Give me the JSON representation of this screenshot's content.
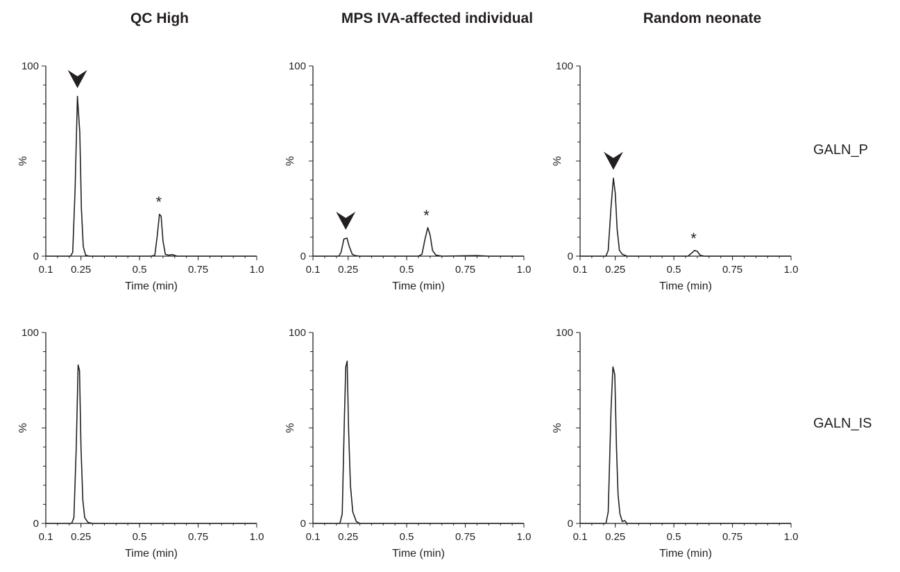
{
  "column_titles": [
    "QC High",
    "MPS IVA-affected individual",
    "Random neonate"
  ],
  "row_labels": [
    "GALN_P",
    "GALN_IS"
  ],
  "colors": {
    "trace": "#231f20",
    "arrow": "#231f20"
  },
  "chart_data": [
    {
      "type": "line",
      "column": "QC High",
      "row": "GALN_P",
      "xlabel": "Time (min)",
      "ylabel": "%",
      "xlim": [
        0.1,
        1.0
      ],
      "ylim": [
        0,
        100
      ],
      "x_ticks": [
        "0.1",
        "0.25",
        "0.5",
        "0.75",
        "1.0"
      ],
      "y_ticks": [
        "0",
        "100"
      ],
      "series": [
        {
          "values": [
            [
              0.1,
              0
            ],
            [
              0.205,
              0
            ],
            [
              0.215,
              2
            ],
            [
              0.225,
              35
            ],
            [
              0.235,
              84
            ],
            [
              0.245,
              65
            ],
            [
              0.252,
              25
            ],
            [
              0.26,
              5
            ],
            [
              0.27,
              0.5
            ],
            [
              0.285,
              0
            ],
            [
              0.55,
              0
            ],
            [
              0.565,
              0.5
            ],
            [
              0.575,
              10
            ],
            [
              0.585,
              22
            ],
            [
              0.592,
              21
            ],
            [
              0.6,
              8
            ],
            [
              0.61,
              1
            ],
            [
              0.625,
              0.5
            ],
            [
              0.64,
              0.8
            ],
            [
              0.66,
              0
            ],
            [
              1.0,
              0
            ]
          ]
        }
      ],
      "peaks": [
        {
          "x": 0.235,
          "y": 84,
          "marker": "arrowhead"
        },
        {
          "x": 0.588,
          "y": 22,
          "marker": "*"
        }
      ]
    },
    {
      "type": "line",
      "column": "MPS IVA-affected individual",
      "row": "GALN_P",
      "xlabel": "Time (min)",
      "ylabel": "%",
      "xlim": [
        0.1,
        1.0
      ],
      "ylim": [
        0,
        100
      ],
      "x_ticks": [
        "0.1",
        "0.25",
        "0.5",
        "0.75",
        "1.0"
      ],
      "y_ticks": [
        "0",
        "100"
      ],
      "series": [
        {
          "values": [
            [
              0.1,
              0
            ],
            [
              0.21,
              0
            ],
            [
              0.22,
              2
            ],
            [
              0.232,
              9
            ],
            [
              0.245,
              9.5
            ],
            [
              0.255,
              5
            ],
            [
              0.268,
              1
            ],
            [
              0.28,
              0.3
            ],
            [
              0.3,
              0
            ],
            [
              0.55,
              0
            ],
            [
              0.565,
              1
            ],
            [
              0.578,
              9
            ],
            [
              0.59,
              15
            ],
            [
              0.6,
              11
            ],
            [
              0.61,
              3
            ],
            [
              0.625,
              0.5
            ],
            [
              0.65,
              0
            ],
            [
              0.8,
              0.3
            ],
            [
              0.85,
              0
            ],
            [
              1.0,
              0
            ]
          ]
        }
      ],
      "peaks": [
        {
          "x": 0.24,
          "y": 9.5,
          "marker": "arrowhead"
        },
        {
          "x": 0.59,
          "y": 15,
          "marker": "*"
        }
      ]
    },
    {
      "type": "line",
      "column": "Random neonate",
      "row": "GALN_P",
      "xlabel": "Time (min)",
      "ylabel": "%",
      "xlim": [
        0.1,
        1.0
      ],
      "ylim": [
        0,
        100
      ],
      "x_ticks": [
        "0.1",
        "0.25",
        "0.5",
        "0.75",
        "1.0"
      ],
      "y_ticks": [
        "0",
        "100"
      ],
      "series": [
        {
          "values": [
            [
              0.1,
              0
            ],
            [
              0.21,
              0
            ],
            [
              0.22,
              3
            ],
            [
              0.232,
              26
            ],
            [
              0.242,
              41
            ],
            [
              0.25,
              33
            ],
            [
              0.258,
              14
            ],
            [
              0.268,
              3
            ],
            [
              0.28,
              1
            ],
            [
              0.3,
              0
            ],
            [
              0.56,
              0
            ],
            [
              0.575,
              1.5
            ],
            [
              0.588,
              3
            ],
            [
              0.6,
              2.5
            ],
            [
              0.612,
              0.5
            ],
            [
              0.63,
              0
            ],
            [
              1.0,
              0
            ]
          ]
        }
      ],
      "peaks": [
        {
          "x": 0.242,
          "y": 41,
          "marker": "arrowhead"
        },
        {
          "x": 0.59,
          "y": 3,
          "marker": "*"
        }
      ]
    },
    {
      "type": "line",
      "column": "QC High",
      "row": "GALN_IS",
      "xlabel": "Time (min)",
      "ylabel": "%",
      "xlim": [
        0.1,
        1.0
      ],
      "ylim": [
        0,
        100
      ],
      "x_ticks": [
        "0.1",
        "0.25",
        "0.5",
        "0.75",
        "1.0"
      ],
      "y_ticks": [
        "0",
        "100"
      ],
      "series": [
        {
          "values": [
            [
              0.1,
              0
            ],
            [
              0.21,
              0
            ],
            [
              0.22,
              3
            ],
            [
              0.23,
              40
            ],
            [
              0.238,
              83
            ],
            [
              0.244,
              80
            ],
            [
              0.25,
              40
            ],
            [
              0.258,
              12
            ],
            [
              0.266,
              3
            ],
            [
              0.28,
              0.5
            ],
            [
              0.3,
              0
            ],
            [
              1.0,
              0
            ]
          ]
        }
      ]
    },
    {
      "type": "line",
      "column": "MPS IVA-affected individual",
      "row": "GALN_IS",
      "xlabel": "Time (min)",
      "ylabel": "%",
      "xlim": [
        0.1,
        1.0
      ],
      "ylim": [
        0,
        100
      ],
      "x_ticks": [
        "0.1",
        "0.25",
        "0.5",
        "0.75",
        "1.0"
      ],
      "y_ticks": [
        "0",
        "100"
      ],
      "series": [
        {
          "values": [
            [
              0.1,
              0
            ],
            [
              0.215,
              0
            ],
            [
              0.225,
              5
            ],
            [
              0.234,
              55
            ],
            [
              0.24,
              82
            ],
            [
              0.246,
              85
            ],
            [
              0.252,
              50
            ],
            [
              0.26,
              20
            ],
            [
              0.27,
              6
            ],
            [
              0.285,
              1
            ],
            [
              0.3,
              0
            ],
            [
              1.0,
              0
            ]
          ]
        }
      ]
    },
    {
      "type": "line",
      "column": "Random neonate",
      "row": "GALN_IS",
      "xlabel": "Time (min)",
      "ylabel": "%",
      "xlim": [
        0.1,
        1.0
      ],
      "ylim": [
        0,
        100
      ],
      "x_ticks": [
        "0.1",
        "0.25",
        "0.5",
        "0.75",
        "1.0"
      ],
      "y_ticks": [
        "0",
        "100"
      ],
      "series": [
        {
          "values": [
            [
              0.1,
              0
            ],
            [
              0.21,
              0
            ],
            [
              0.22,
              6
            ],
            [
              0.232,
              60
            ],
            [
              0.24,
              82
            ],
            [
              0.248,
              78
            ],
            [
              0.255,
              40
            ],
            [
              0.262,
              15
            ],
            [
              0.27,
              5
            ],
            [
              0.28,
              1
            ],
            [
              0.29,
              1.5
            ],
            [
              0.3,
              0
            ],
            [
              1.0,
              0
            ]
          ]
        }
      ]
    }
  ]
}
